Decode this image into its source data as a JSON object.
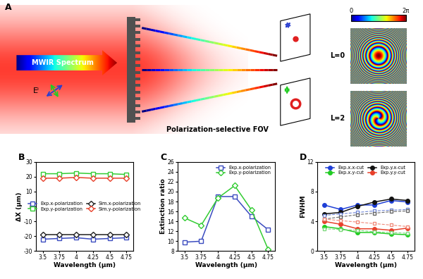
{
  "diagram": {
    "panel_label": "A",
    "input_label": "MWIR Spectrum",
    "field_label": "Eⁱ",
    "caption": "Polarization-selective FOV",
    "phase_maps": [
      {
        "label": "L=0",
        "L": 0
      },
      {
        "label": "L=2",
        "L": 2
      }
    ],
    "colorbar": {
      "range": [
        0,
        6.2832
      ],
      "ticks": [
        0,
        {
          "value": 6.2832,
          "label": "2π"
        }
      ]
    }
  },
  "chart_data": [
    {
      "type": "line",
      "title": "B",
      "x_label": "Wavelength (μm)",
      "y_label": "ΔX (μm)",
      "x": [
        3.5,
        3.75,
        4,
        4.25,
        4.5,
        4.75
      ],
      "xlim": [
        3.4,
        4.85
      ],
      "xticks": [
        3.5,
        3.75,
        4,
        4.25,
        4.5,
        4.75
      ],
      "ylim": [
        -30,
        30
      ],
      "yticks": [
        -30,
        -20,
        -10,
        0,
        10,
        20,
        30
      ],
      "legend": "center",
      "series": [
        {
          "name": "Exp.x-polarization",
          "color": "#3b4cc0",
          "marker": "square",
          "line_style": "solid",
          "values": [
            -22,
            -21.5,
            -21,
            -22,
            -21.5,
            -21
          ]
        },
        {
          "name": "Exp.y-polarization",
          "color": "#33cc33",
          "marker": "square",
          "line_style": "solid",
          "values": [
            22,
            22,
            22.5,
            22,
            22,
            21.5
          ]
        },
        {
          "name": "Sim.x-polarization",
          "color": "#222222",
          "marker": "diamond",
          "line_style": "solid",
          "values": [
            -19,
            -19,
            -19,
            -19,
            -19,
            -19
          ]
        },
        {
          "name": "Sim.y-polarization",
          "color": "#e8402a",
          "marker": "diamond",
          "line_style": "solid",
          "values": [
            19,
            19,
            19.5,
            19,
            19,
            19
          ]
        }
      ]
    },
    {
      "type": "line",
      "title": "C",
      "x_label": "Wavelength (μm)",
      "y_label": "Extinction ratio",
      "x": [
        3.5,
        3.75,
        4,
        4.25,
        4.5,
        4.75
      ],
      "xlim": [
        3.4,
        4.85
      ],
      "xticks": [
        3.5,
        3.75,
        4,
        4.25,
        4.5,
        4.75
      ],
      "ylim": [
        8,
        26
      ],
      "yticks": [
        8,
        10,
        12,
        14,
        16,
        18,
        20,
        22,
        24,
        26
      ],
      "legend": "upper right",
      "series": [
        {
          "name": "Exp.x-polarization",
          "color": "#3b4cc0",
          "marker": "square",
          "line_style": "solid",
          "values": [
            9.8,
            10,
            19,
            19,
            15,
            12.3
          ]
        },
        {
          "name": "Exp.y-polarization",
          "color": "#33cc33",
          "marker": "diamond",
          "line_style": "solid",
          "values": [
            14.7,
            13.2,
            18.7,
            21.2,
            16.3,
            8.3
          ]
        }
      ]
    },
    {
      "type": "line",
      "title": "D",
      "x_label": "Wavelength (μm)",
      "y_label": "FWHM",
      "x": [
        3.5,
        3.75,
        4,
        4.25,
        4.5,
        4.75
      ],
      "xlim": [
        3.4,
        4.85
      ],
      "xticks": [
        3.5,
        3.75,
        4,
        4.25,
        4.5,
        4.75
      ],
      "ylim": [
        0,
        12
      ],
      "yticks": [
        0,
        4,
        8,
        12
      ],
      "legend": "upper center",
      "series": [
        {
          "name": "Exp.x.x-cut",
          "color": "#1f3fd6",
          "marker": "circle",
          "line_style": "solid",
          "values": [
            6.2,
            5.6,
            6.2,
            6.2,
            6.8,
            6.6
          ]
        },
        {
          "name": "Exp.x.y-cut",
          "color": "#22cc22",
          "marker": "circle",
          "line_style": "solid",
          "values": [
            3.3,
            3.0,
            2.5,
            2.5,
            2.3,
            2.2
          ]
        },
        {
          "name": "Exp.y.x-cut",
          "color": "#111111",
          "marker": "circle",
          "line_style": "solid",
          "values": [
            5.0,
            5.2,
            6.0,
            6.6,
            7.0,
            6.8
          ]
        },
        {
          "name": "Exp.y.y-cut",
          "color": "#e8402a",
          "marker": "circle",
          "line_style": "solid",
          "values": [
            4.0,
            3.6,
            3.0,
            3.0,
            2.8,
            3.1
          ]
        },
        {
          "color": "#6f86d6",
          "marker": "square",
          "line_style": "dashed",
          "values": [
            4.8,
            5.0,
            5.2,
            5.4,
            5.5,
            5.6
          ]
        },
        {
          "color": "#666666",
          "marker": "square",
          "line_style": "dashed",
          "values": [
            4.3,
            4.6,
            4.9,
            5.1,
            5.3,
            5.4
          ]
        },
        {
          "color": "#7fd97f",
          "marker": "square",
          "line_style": "dashed",
          "values": [
            3.0,
            2.9,
            2.8,
            2.6,
            2.5,
            2.4
          ]
        },
        {
          "color": "#f08a7a",
          "marker": "square",
          "line_style": "dashed",
          "values": [
            4.3,
            4.1,
            3.9,
            3.7,
            3.5,
            3.3
          ]
        }
      ]
    }
  ]
}
